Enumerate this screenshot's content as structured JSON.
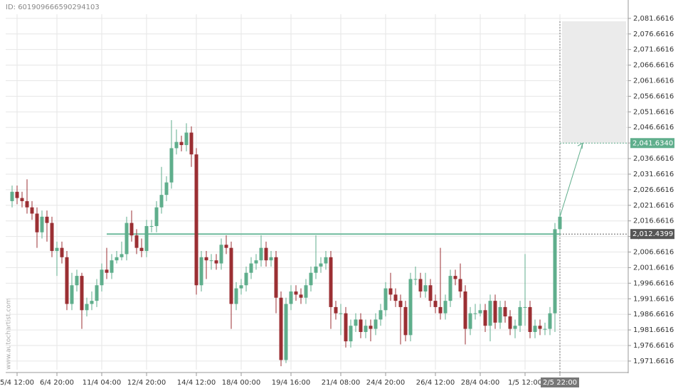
{
  "chart_data": {
    "type": "candlestick",
    "id_label": "ID: 601909666590294103",
    "watermark": "www.autochartist.com",
    "categories": [
      null,
      "5/4 12:00",
      null,
      null,
      null,
      null,
      null,
      null,
      null,
      "6/4 20:00",
      null,
      null,
      null,
      null,
      null,
      null,
      null,
      null,
      "11/4 04:00",
      null,
      null,
      null,
      null,
      null,
      null,
      null,
      null,
      "12/4 20:00",
      null,
      null,
      null,
      null,
      null,
      null,
      null,
      null,
      null,
      "14/4 12:00",
      null,
      null,
      null,
      null,
      null,
      null,
      null,
      null,
      "18/4 00:00",
      null,
      null,
      null,
      null,
      null,
      null,
      null,
      null,
      null,
      "19/4 16:00",
      null,
      null,
      null,
      null,
      null,
      null,
      null,
      null,
      null,
      "21/4 08:00",
      null,
      null,
      null,
      null,
      null,
      null,
      null,
      null,
      "24/4 20:00",
      null,
      null,
      null,
      null,
      null,
      null,
      null,
      null,
      null,
      "26/4 12:00",
      null,
      null,
      null,
      null,
      null,
      null,
      null,
      null,
      "28/4 04:00",
      null,
      null,
      null,
      null,
      null,
      null,
      null,
      null,
      "1/5 12:00",
      null,
      null,
      null,
      null,
      null,
      null,
      "2/5 22:00"
    ],
    "open": [
      2023,
      2026,
      2024,
      2023,
      2021,
      2019,
      2013,
      2018,
      2016,
      2007,
      2008,
      2005,
      1990,
      1996,
      1999,
      1988,
      1990,
      1991,
      1996,
      2001,
      2000,
      2004,
      2005,
      2006,
      2016,
      2012,
      2008,
      2007,
      2015,
      2015,
      2021,
      2025,
      2029,
      2040,
      2042,
      2041,
      2045,
      2038,
      1996,
      2005,
      2004,
      2004,
      2003,
      2009,
      2008,
      1990,
      1995,
      1996,
      2000,
      2003,
      2004,
      2008,
      2004,
      2005,
      1992,
      1972,
      1990,
      1994,
      1993,
      1992,
      1996,
      2000,
      2002,
      2003,
      2005,
      1989,
      1987,
      1987,
      1978,
      1983,
      1985,
      1981,
      1983,
      1982,
      1985,
      1988,
      1995,
      1993,
      1991,
      1989,
      1980,
      1998,
      1998,
      1994,
      1996,
      1991,
      1989,
      1987,
      1991,
      1999,
      1998,
      1994,
      1982,
      1987,
      1987,
      1988,
      1983,
      1991,
      1984,
      1989,
      1986,
      1982,
      1983,
      1989,
      1989,
      1981,
      1983,
      1982,
      1982,
      1987,
      2014
    ],
    "high": [
      2028,
      2028,
      2026,
      2030,
      2023,
      2021,
      2020,
      2020,
      2018,
      2010,
      2010,
      2007,
      2000,
      2001,
      2000,
      1992,
      1994,
      1998,
      2003,
      2008,
      2006,
      2007,
      2010,
      2018,
      2020,
      2014,
      2011,
      2017,
      2017,
      2023,
      2034,
      2031,
      2049,
      2046,
      2044,
      2048,
      2047,
      2040,
      2007,
      2007,
      2006,
      2006,
      2011,
      2012,
      2010,
      1997,
      1998,
      2002,
      2005,
      2006,
      2012,
      2010,
      2007,
      2007,
      1994,
      1992,
      1996,
      1996,
      1995,
      1998,
      2002,
      2012,
      2005,
      2007,
      2007,
      1991,
      1990,
      1989,
      1985,
      1987,
      1987,
      1985,
      1985,
      1987,
      1990,
      1997,
      2000,
      1995,
      1993,
      1991,
      2000,
      2002,
      2000,
      2000,
      1998,
      1993,
      2008,
      1993,
      2001,
      2001,
      2003,
      1996,
      1989,
      1990,
      1990,
      1990,
      1993,
      1993,
      1991,
      1991,
      1988,
      1985,
      1991,
      2006,
      1991,
      1985,
      1985,
      1984,
      1989,
      2016,
      2020
    ],
    "low": [
      2021,
      2022,
      2021,
      2019,
      2017,
      2008,
      2011,
      2010,
      2005,
      1999,
      2003,
      1988,
      1988,
      1994,
      1982,
      1986,
      1988,
      1989,
      1994,
      1998,
      1998,
      2003,
      2004,
      2004,
      2010,
      2006,
      2005,
      2005,
      2013,
      2013,
      2019,
      2023,
      2027,
      2038,
      2039,
      2039,
      2034,
      1993,
      1994,
      1998,
      2001,
      2001,
      2001,
      2006,
      1982,
      1988,
      1993,
      1994,
      1998,
      2001,
      2002,
      2002,
      2002,
      1987,
      1970,
      1971,
      1988,
      1991,
      1990,
      1990,
      1994,
      1998,
      2000,
      2001,
      1982,
      1985,
      1980,
      1976,
      1976,
      1981,
      1979,
      1979,
      1978,
      1980,
      1983,
      1986,
      1991,
      1989,
      1977,
      1978,
      1978,
      1996,
      1992,
      1992,
      1989,
      1987,
      1985,
      1985,
      1989,
      1996,
      1992,
      1977,
      1980,
      1985,
      1986,
      1981,
      1978,
      1982,
      1982,
      1984,
      1980,
      1979,
      1981,
      1983,
      1979,
      1979,
      1980,
      1980,
      1980,
      1981,
      2012
    ],
    "close": [
      2026,
      2024,
      2023,
      2021,
      2019,
      2013,
      2018,
      2016,
      2007,
      2008,
      2005,
      1990,
      1996,
      1999,
      1988,
      1990,
      1991,
      1996,
      2001,
      2000,
      2004,
      2005,
      2006,
      2016,
      2012,
      2008,
      2007,
      2015,
      2015,
      2021,
      2025,
      2029,
      2040,
      2042,
      2041,
      2045,
      2038,
      1996,
      2005,
      2004,
      2004,
      2003,
      2009,
      2008,
      1990,
      1995,
      1996,
      2000,
      2003,
      2004,
      2008,
      2004,
      2005,
      1992,
      1972,
      1990,
      1994,
      1993,
      1992,
      1996,
      2000,
      2002,
      2003,
      2005,
      1989,
      1987,
      1987,
      1978,
      1983,
      1985,
      1981,
      1983,
      1982,
      1985,
      1988,
      1995,
      1993,
      1991,
      1989,
      1980,
      1998,
      1998,
      1994,
      1996,
      1991,
      1989,
      1987,
      1991,
      1999,
      1998,
      1994,
      1982,
      1987,
      1987,
      1988,
      1983,
      1991,
      1984,
      1989,
      1986,
      1982,
      1983,
      1989,
      1989,
      1981,
      1983,
      1982,
      1982,
      1987,
      2014,
      2018
    ],
    "up_color": "#5fae8c",
    "down_color": "#9b2f33",
    "level_color": "#6fba9d",
    "ylim": [
      1968.9,
      2083.0
    ],
    "yticks": [
      {
        "value": 1971.6616,
        "label": "1,971.6616"
      },
      {
        "value": 1976.6616,
        "label": "1,976.6616"
      },
      {
        "value": 1981.6616,
        "label": "1,981.6616"
      },
      {
        "value": 1986.6616,
        "label": "1,986.6616"
      },
      {
        "value": 1991.6616,
        "label": "1,991.6616"
      },
      {
        "value": 1996.6616,
        "label": "1,996.6616"
      },
      {
        "value": 2001.6616,
        "label": "2,001.6616"
      },
      {
        "value": 2006.6616,
        "label": "2,006.6616"
      },
      {
        "value": 2011.6616,
        "label": "2,011.6616"
      },
      {
        "value": 2016.6616,
        "label": "2,016.6616"
      },
      {
        "value": 2021.6616,
        "label": "2,021.6616"
      },
      {
        "value": 2026.6616,
        "label": "2,026.6616"
      },
      {
        "value": 2031.6616,
        "label": "2,031.6616"
      },
      {
        "value": 2036.6616,
        "label": "2,036.6616"
      },
      {
        "value": 2041.6616,
        "label": "2,041.6616"
      },
      {
        "value": 2046.6616,
        "label": "2,046.6616"
      },
      {
        "value": 2051.6616,
        "label": "2,051.6616"
      },
      {
        "value": 2056.6616,
        "label": "2,056.6616"
      },
      {
        "value": 2061.6616,
        "label": "2,061.6616"
      },
      {
        "value": 2066.6616,
        "label": "2,066.6616"
      },
      {
        "value": 2071.6616,
        "label": "2,071.6616"
      },
      {
        "value": 2076.6616,
        "label": "2,076.6616"
      },
      {
        "value": 2081.6616,
        "label": "2,081.6616"
      }
    ],
    "grid": true,
    "level": {
      "value": 2012.4399,
      "label": "2,012.4399"
    },
    "target": {
      "value": 2041.634,
      "label": "2,041.6340"
    }
  }
}
